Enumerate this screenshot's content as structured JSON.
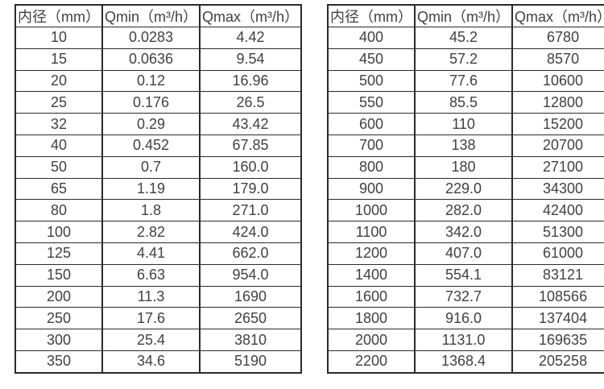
{
  "colors": {
    "border": "#2b2b2b",
    "text": "#414141",
    "background": "#ffffff"
  },
  "tables": [
    {
      "name": "flow-table-small-diameters",
      "headers": [
        "内径（mm）",
        "Qmin（m³/h）",
        "Qmax（m³/h）"
      ],
      "rows": [
        [
          "10",
          "0.0283",
          "4.42"
        ],
        [
          "15",
          "0.0636",
          "9.54"
        ],
        [
          "20",
          "0.12",
          "16.96"
        ],
        [
          "25",
          "0.176",
          "26.5"
        ],
        [
          "32",
          "0.29",
          "43.42"
        ],
        [
          "40",
          "0.452",
          "67.85"
        ],
        [
          "50",
          "0.7",
          "160.0"
        ],
        [
          "65",
          "1.19",
          "179.0"
        ],
        [
          "80",
          "1.8",
          "271.0"
        ],
        [
          "100",
          "2.82",
          "424.0"
        ],
        [
          "125",
          "4.41",
          "662.0"
        ],
        [
          "150",
          "6.63",
          "954.0"
        ],
        [
          "200",
          "11.3",
          "1690"
        ],
        [
          "250",
          "17.6",
          "2650"
        ],
        [
          "300",
          "25.4",
          "3810"
        ],
        [
          "350",
          "34.6",
          "5190"
        ]
      ]
    },
    {
      "name": "flow-table-large-diameters",
      "headers": [
        "内径（mm）",
        "Qmin（m³/h）",
        "Qmax（m³/h）"
      ],
      "rows": [
        [
          "400",
          "45.2",
          "6780"
        ],
        [
          "450",
          "57.2",
          "8570"
        ],
        [
          "500",
          "77.6",
          "10600"
        ],
        [
          "550",
          "85.5",
          "12800"
        ],
        [
          "600",
          "110",
          "15200"
        ],
        [
          "700",
          "138",
          "20700"
        ],
        [
          "800",
          "180",
          "27100"
        ],
        [
          "900",
          "229.0",
          "34300"
        ],
        [
          "1000",
          "282.0",
          "42400"
        ],
        [
          "1100",
          "342.0",
          "51300"
        ],
        [
          "1200",
          "407.0",
          "61000"
        ],
        [
          "1400",
          "554.1",
          "83121"
        ],
        [
          "1600",
          "732.7",
          "108566"
        ],
        [
          "1800",
          "916.0",
          "137404"
        ],
        [
          "2000",
          "1131.0",
          "169635"
        ],
        [
          "2200",
          "1368.4",
          "205258"
        ]
      ]
    }
  ]
}
